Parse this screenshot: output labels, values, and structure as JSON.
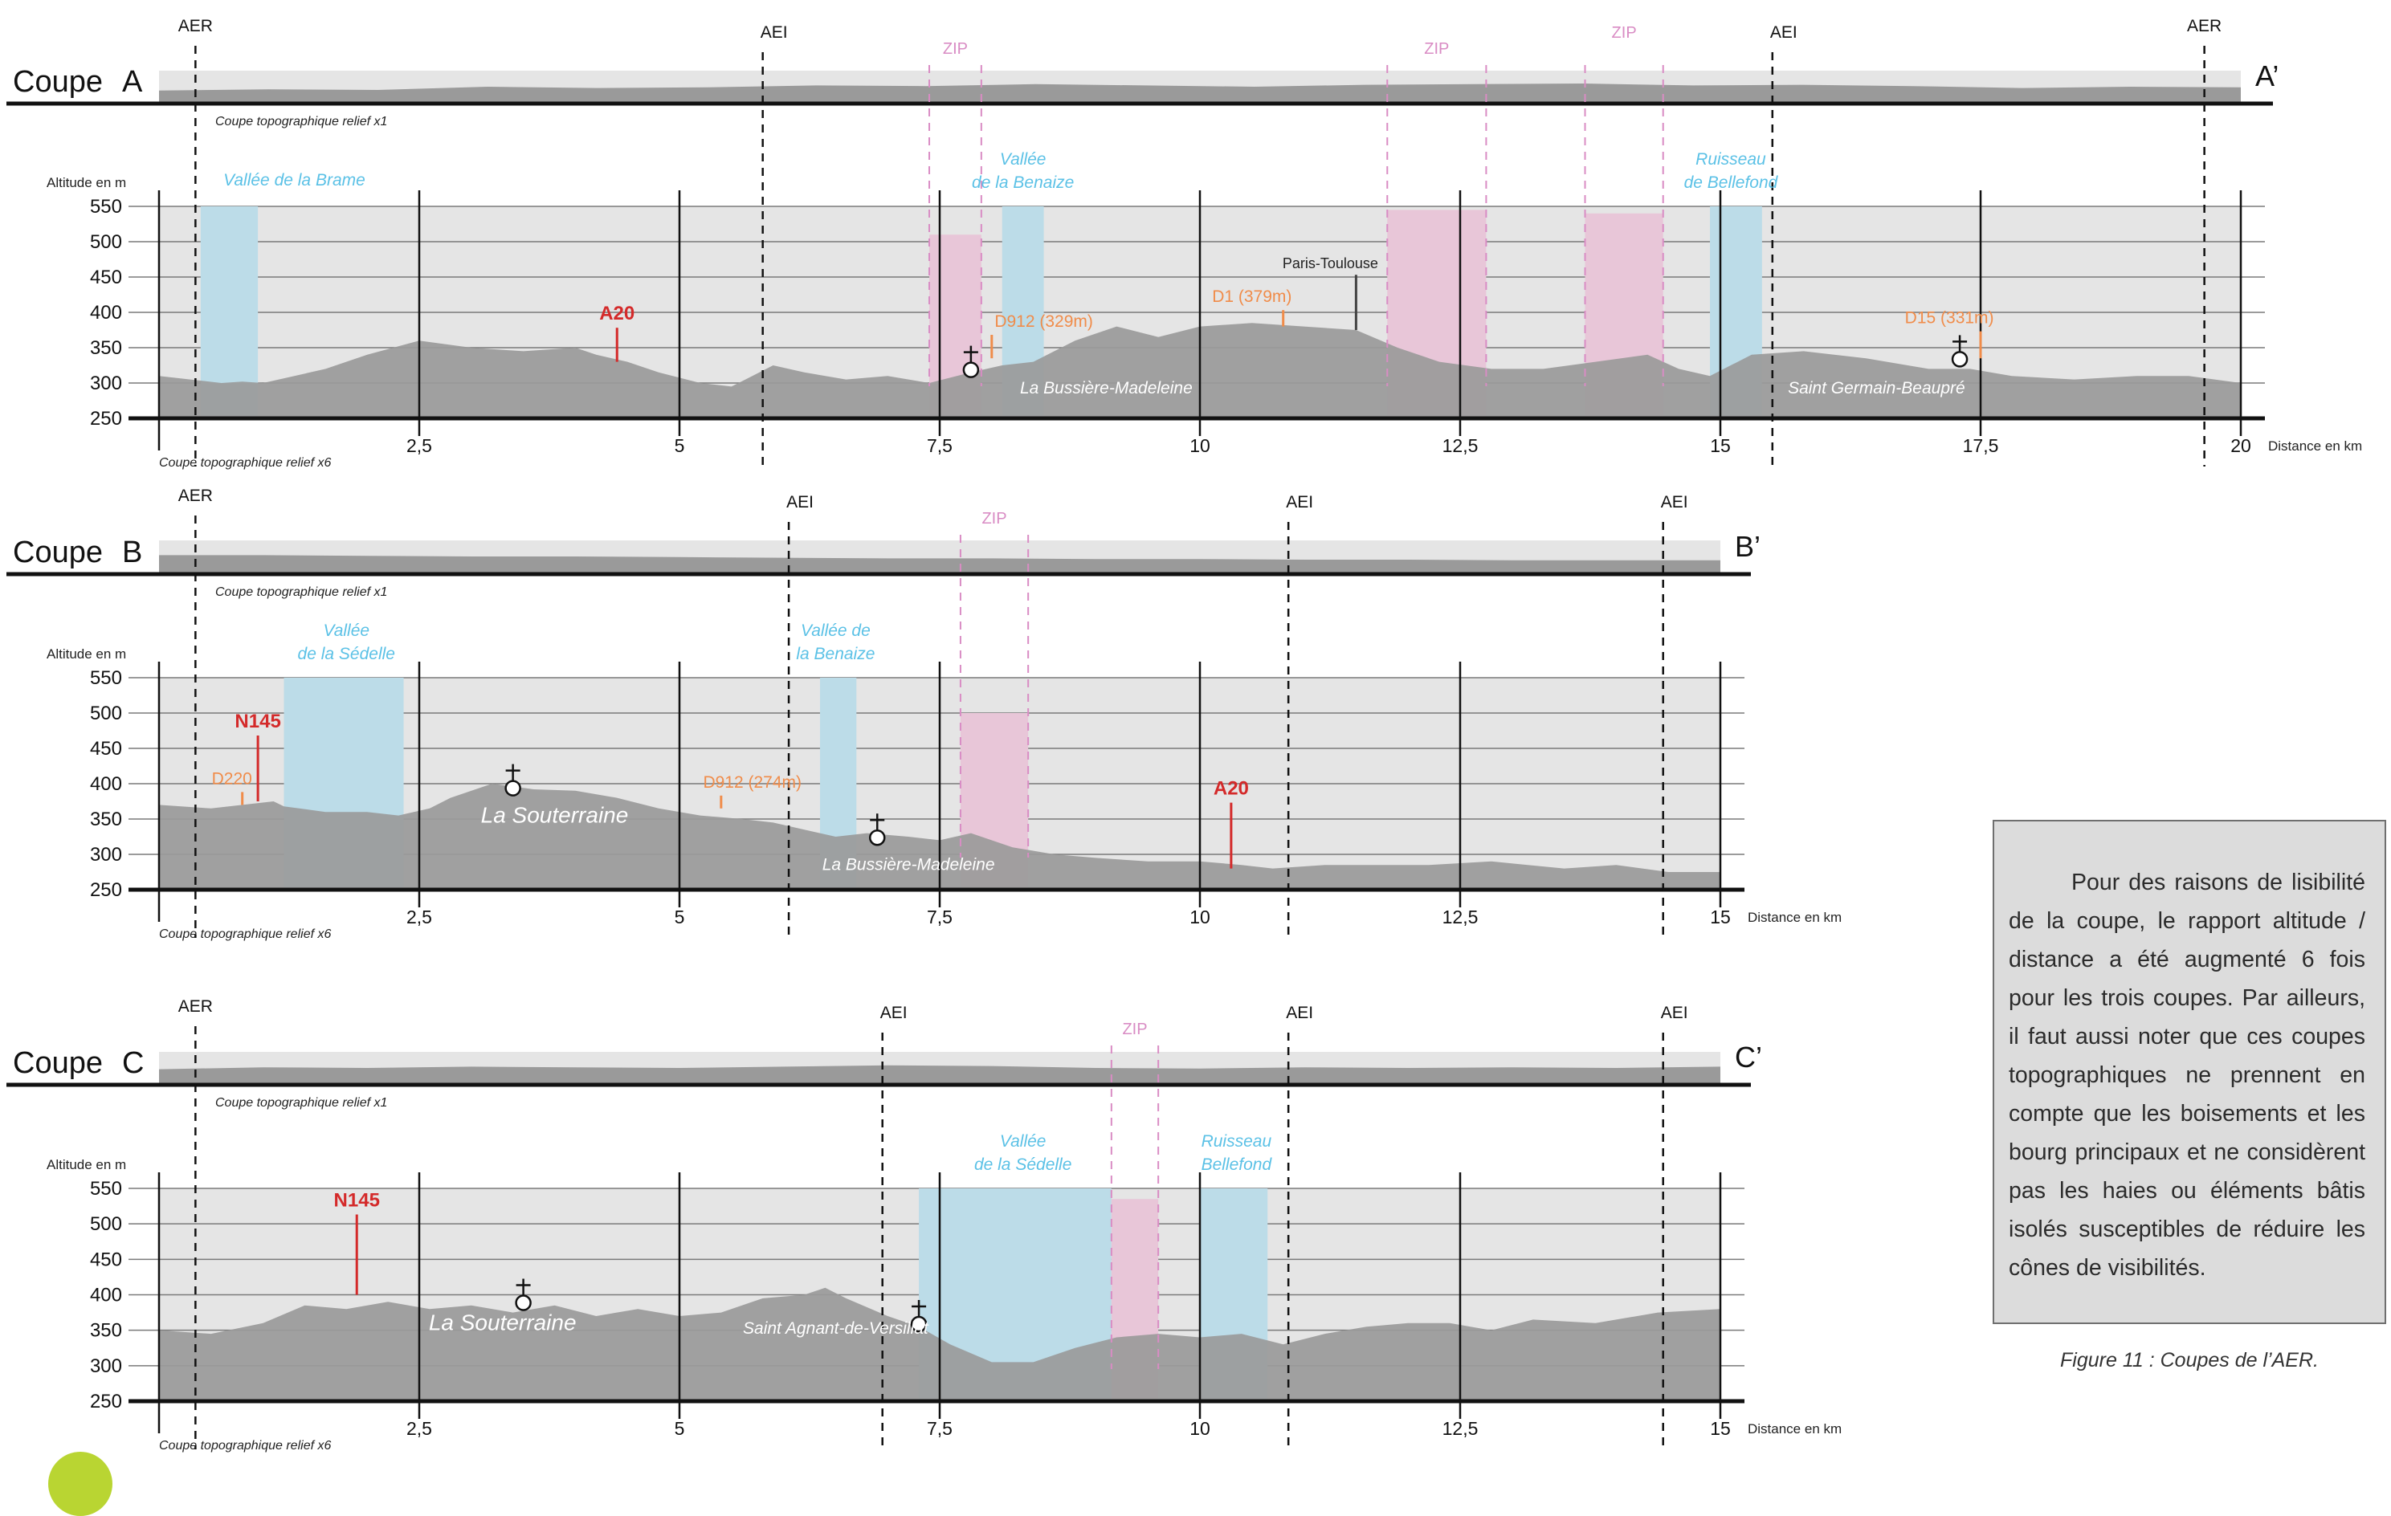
{
  "note": {
    "text": "Pour des raisons de lisibilité de la coupe, le rapport altitude / distance a été augmenté 6 fois pour les trois coupes. Par ailleurs, il faut aussi noter que ces coupes topographiques ne prennent en compte que les boisements et les bourg principaux et ne considèrent pas les haies ou éléments bâtis isolés susceptibles de réduire les cônes de visibilités."
  },
  "caption": "Figure 11 : Coupes de l’AER.",
  "colors": {
    "terrain": "#9a9a9a",
    "band": "#e5e5e5",
    "vallee": "#bcdce8",
    "zip": "#e8c6d8",
    "zipText": "#d98cc4",
    "valleeText": "#5bc1e6",
    "road": "#f08c4a",
    "highway": "#d42a2a"
  },
  "common": {
    "altitude_label": "Altitude en m",
    "distance_label": "Distance en km",
    "relief1": "Coupe topographique relief x1",
    "relief6": "Coupe topographique relief x6",
    "yticks": [
      "550",
      "500",
      "450",
      "400",
      "350",
      "300",
      "250"
    ]
  },
  "coupes": [
    {
      "id": "A",
      "title": "Coupe",
      "letter": "A",
      "end": "A’",
      "max_km": 20,
      "xticks": [
        "2,5",
        "5",
        "7,5",
        "10",
        "12,5",
        "15",
        "17,5",
        "20"
      ],
      "profile": [
        [
          0,
          310
        ],
        [
          0.3,
          305
        ],
        [
          0.6,
          300
        ],
        [
          0.8,
          302
        ],
        [
          1.0,
          300
        ],
        [
          1.3,
          310
        ],
        [
          1.6,
          320
        ],
        [
          2.0,
          340
        ],
        [
          2.5,
          360
        ],
        [
          3.0,
          350
        ],
        [
          3.5,
          345
        ],
        [
          4.0,
          350
        ],
        [
          4.2,
          340
        ],
        [
          4.5,
          330
        ],
        [
          4.8,
          315
        ],
        [
          5.2,
          300
        ],
        [
          5.5,
          295
        ],
        [
          5.7,
          310
        ],
        [
          5.9,
          325
        ],
        [
          6.2,
          315
        ],
        [
          6.6,
          305
        ],
        [
          7.0,
          310
        ],
        [
          7.4,
          300
        ],
        [
          7.8,
          315
        ],
        [
          8.1,
          325
        ],
        [
          8.4,
          330
        ],
        [
          8.8,
          360
        ],
        [
          9.2,
          380
        ],
        [
          9.6,
          365
        ],
        [
          10.0,
          380
        ],
        [
          10.5,
          385
        ],
        [
          11.0,
          380
        ],
        [
          11.5,
          375
        ],
        [
          11.9,
          350
        ],
        [
          12.3,
          330
        ],
        [
          12.8,
          320
        ],
        [
          13.3,
          320
        ],
        [
          13.8,
          330
        ],
        [
          14.3,
          340
        ],
        [
          14.6,
          320
        ],
        [
          14.9,
          310
        ],
        [
          15.3,
          340
        ],
        [
          15.8,
          345
        ],
        [
          16.4,
          335
        ],
        [
          17.0,
          320
        ],
        [
          17.4,
          320
        ],
        [
          17.8,
          310
        ],
        [
          18.4,
          305
        ],
        [
          19.0,
          310
        ],
        [
          19.5,
          310
        ],
        [
          20.0,
          300
        ]
      ],
      "top_profile": [
        0.2,
        0.3,
        0.25,
        0.5,
        0.4,
        0.45,
        0.6,
        0.55,
        0.7,
        0.6,
        0.5,
        0.65,
        0.7,
        0.75,
        0.6,
        0.65,
        0.55,
        0.4,
        0.5,
        0.45
      ],
      "aer": [
        0.35,
        19.65
      ],
      "aei": [
        5.8,
        15.5
      ],
      "zips": [
        [
          7.4,
          7.9
        ],
        [
          11.8,
          12.75
        ],
        [
          13.7,
          14.45
        ]
      ],
      "zip_heights": [
        510,
        545,
        540
      ],
      "vallees": [
        [
          0.4,
          0.95
        ],
        [
          8.1,
          8.5
        ],
        [
          14.9,
          15.4
        ]
      ],
      "vallee_labels": [
        {
          "text": "Vallée de la Brame",
          "km": 1.3,
          "l2": ""
        },
        {
          "text": "Vallée",
          "km": 8.3,
          "l2": "de la Benaize"
        },
        {
          "text": "Ruisseau",
          "km": 15.1,
          "l2": "de Bellefond"
        }
      ],
      "aer_label": "AER",
      "aei_label": "AEI",
      "zip_label": "ZIP",
      "highways": [
        {
          "text": "A20",
          "km": 4.4,
          "top": 385,
          "bot": 330
        }
      ],
      "roads": [
        {
          "text": "D912 (329m)",
          "km": 8.0,
          "top": 375,
          "bot": 335,
          "lx": 8.5
        },
        {
          "text": "D1 (379m)",
          "km": 10.8,
          "top": 410,
          "bot": 380,
          "lx": 10.5
        },
        {
          "text": "D15 (331m)",
          "km": 17.5,
          "top": 380,
          "bot": 335,
          "lx": 17.2
        }
      ],
      "rail": {
        "text": "Paris-Toulouse",
        "km": 11.5,
        "top": 460,
        "bot": 375
      },
      "churches": [
        {
          "km": 7.8,
          "alt": 330
        },
        {
          "km": 17.3,
          "alt": 345
        }
      ],
      "towns": [
        {
          "text": "La Bussière-Madeleine",
          "km": 9.1,
          "alt": 285
        },
        {
          "text": "Saint Germain-Beaupré",
          "km": 16.5,
          "alt": 285
        }
      ]
    },
    {
      "id": "B",
      "title": "Coupe",
      "letter": "B",
      "end": "B’",
      "max_km": 15,
      "xticks": [
        "2,5",
        "5",
        "7,5",
        "10",
        "12,5",
        "15"
      ],
      "profile": [
        [
          0,
          370
        ],
        [
          0.5,
          365
        ],
        [
          0.8,
          370
        ],
        [
          1.1,
          375
        ],
        [
          1.2,
          368
        ],
        [
          1.6,
          360
        ],
        [
          2.0,
          360
        ],
        [
          2.3,
          355
        ],
        [
          2.6,
          365
        ],
        [
          2.8,
          380
        ],
        [
          3.2,
          400
        ],
        [
          3.6,
          392
        ],
        [
          4.0,
          390
        ],
        [
          4.4,
          380
        ],
        [
          4.8,
          365
        ],
        [
          5.2,
          355
        ],
        [
          5.6,
          350
        ],
        [
          5.9,
          345
        ],
        [
          6.2,
          335
        ],
        [
          6.5,
          325
        ],
        [
          6.8,
          330
        ],
        [
          7.2,
          325
        ],
        [
          7.5,
          320
        ],
        [
          7.8,
          330
        ],
        [
          8.2,
          310
        ],
        [
          8.6,
          300
        ],
        [
          9.0,
          295
        ],
        [
          9.5,
          290
        ],
        [
          10.0,
          290
        ],
        [
          10.4,
          285
        ],
        [
          10.7,
          280
        ],
        [
          11.2,
          285
        ],
        [
          11.6,
          285
        ],
        [
          12.2,
          285
        ],
        [
          12.8,
          290
        ],
        [
          13.5,
          280
        ],
        [
          14.0,
          285
        ],
        [
          14.5,
          275
        ],
        [
          15.0,
          275
        ]
      ],
      "top_profile": [
        0.6,
        0.6,
        0.55,
        0.5,
        0.5,
        0.45,
        0.4,
        0.35,
        0.35,
        0.3,
        0.3,
        0.25,
        0.25,
        0.2,
        0.2,
        0.2
      ],
      "aer": [
        0.35
      ],
      "aei": [
        6.05,
        10.85,
        14.45
      ],
      "zips": [
        [
          7.7,
          8.35
        ]
      ],
      "zip_heights": [
        500
      ],
      "vallees": [
        [
          1.2,
          2.35
        ],
        [
          6.35,
          6.7
        ]
      ],
      "vallee_labels": [
        {
          "text": "Vallée",
          "km": 1.8,
          "l2": "de la Sédelle"
        },
        {
          "text": "Vallée de",
          "km": 6.5,
          "l2": "la Benaize"
        }
      ],
      "aer_label": "AER",
      "aei_label": "AEI",
      "zip_label": "ZIP",
      "highways": [
        {
          "text": "N145",
          "km": 0.95,
          "top": 475,
          "bot": 375
        },
        {
          "text": "A20",
          "km": 10.3,
          "top": 380,
          "bot": 280
        }
      ],
      "roads": [
        {
          "text": "D220",
          "km": 0.8,
          "top": 395,
          "bot": 370,
          "lx": 0.7
        },
        {
          "text": "D912 (274m)",
          "km": 5.4,
          "top": 390,
          "bot": 365,
          "lx": 5.7
        }
      ],
      "rail": null,
      "churches": [
        {
          "km": 3.4,
          "alt": 405
        },
        {
          "km": 6.9,
          "alt": 335
        }
      ],
      "towns": [
        {
          "text": "La Souterraine",
          "km": 3.8,
          "alt": 345,
          "big": true
        },
        {
          "text": "La Bussière-Madeleine",
          "km": 7.2,
          "alt": 278
        }
      ]
    },
    {
      "id": "C",
      "title": "Coupe",
      "letter": "C",
      "end": "C’",
      "max_km": 15,
      "xticks": [
        "2,5",
        "5",
        "7,5",
        "10",
        "12,5",
        "15"
      ],
      "profile": [
        [
          0,
          350
        ],
        [
          0.5,
          345
        ],
        [
          1.0,
          360
        ],
        [
          1.4,
          385
        ],
        [
          1.8,
          380
        ],
        [
          2.2,
          390
        ],
        [
          2.6,
          380
        ],
        [
          3.0,
          385
        ],
        [
          3.4,
          375
        ],
        [
          3.8,
          385
        ],
        [
          4.2,
          370
        ],
        [
          4.6,
          380
        ],
        [
          5.0,
          370
        ],
        [
          5.4,
          375
        ],
        [
          5.8,
          395
        ],
        [
          6.2,
          400
        ],
        [
          6.4,
          410
        ],
        [
          6.6,
          395
        ],
        [
          7.0,
          370
        ],
        [
          7.3,
          355
        ],
        [
          7.6,
          330
        ],
        [
          8.0,
          305
        ],
        [
          8.4,
          305
        ],
        [
          8.8,
          325
        ],
        [
          9.2,
          340
        ],
        [
          9.6,
          345
        ],
        [
          10.0,
          340
        ],
        [
          10.4,
          345
        ],
        [
          10.8,
          330
        ],
        [
          11.2,
          345
        ],
        [
          11.6,
          355
        ],
        [
          12.0,
          360
        ],
        [
          12.4,
          360
        ],
        [
          12.8,
          350
        ],
        [
          13.2,
          365
        ],
        [
          13.8,
          360
        ],
        [
          14.4,
          375
        ],
        [
          15.0,
          380
        ]
      ],
      "top_profile": [
        0.4,
        0.55,
        0.5,
        0.6,
        0.55,
        0.5,
        0.6,
        0.7,
        0.65,
        0.5,
        0.45,
        0.55,
        0.5,
        0.55,
        0.5,
        0.6
      ],
      "aer": [
        0.35
      ],
      "aei": [
        6.95,
        10.85,
        14.45
      ],
      "zips": [
        [
          9.15,
          9.6
        ]
      ],
      "zip_heights": [
        535
      ],
      "vallees": [
        [
          7.3,
          9.15
        ],
        [
          10.0,
          10.65
        ]
      ],
      "vallee_labels": [
        {
          "text": "Vallée",
          "km": 8.3,
          "l2": "de la Sédelle"
        },
        {
          "text": "Ruisseau",
          "km": 10.35,
          "l2": "Bellefond"
        }
      ],
      "aer_label": "AER",
      "aei_label": "AEI",
      "zip_label": "ZIP",
      "highways": [
        {
          "text": "N145",
          "km": 1.9,
          "top": 520,
          "bot": 400
        }
      ],
      "roads": [],
      "rail": null,
      "churches": [
        {
          "km": 3.5,
          "alt": 400
        },
        {
          "km": 7.3,
          "alt": 370
        }
      ],
      "towns": [
        {
          "text": "La Souterraine",
          "km": 3.3,
          "alt": 350,
          "big": true
        },
        {
          "text": "Saint Agnant-de-Versillat",
          "km": 6.5,
          "alt": 345
        }
      ]
    }
  ]
}
